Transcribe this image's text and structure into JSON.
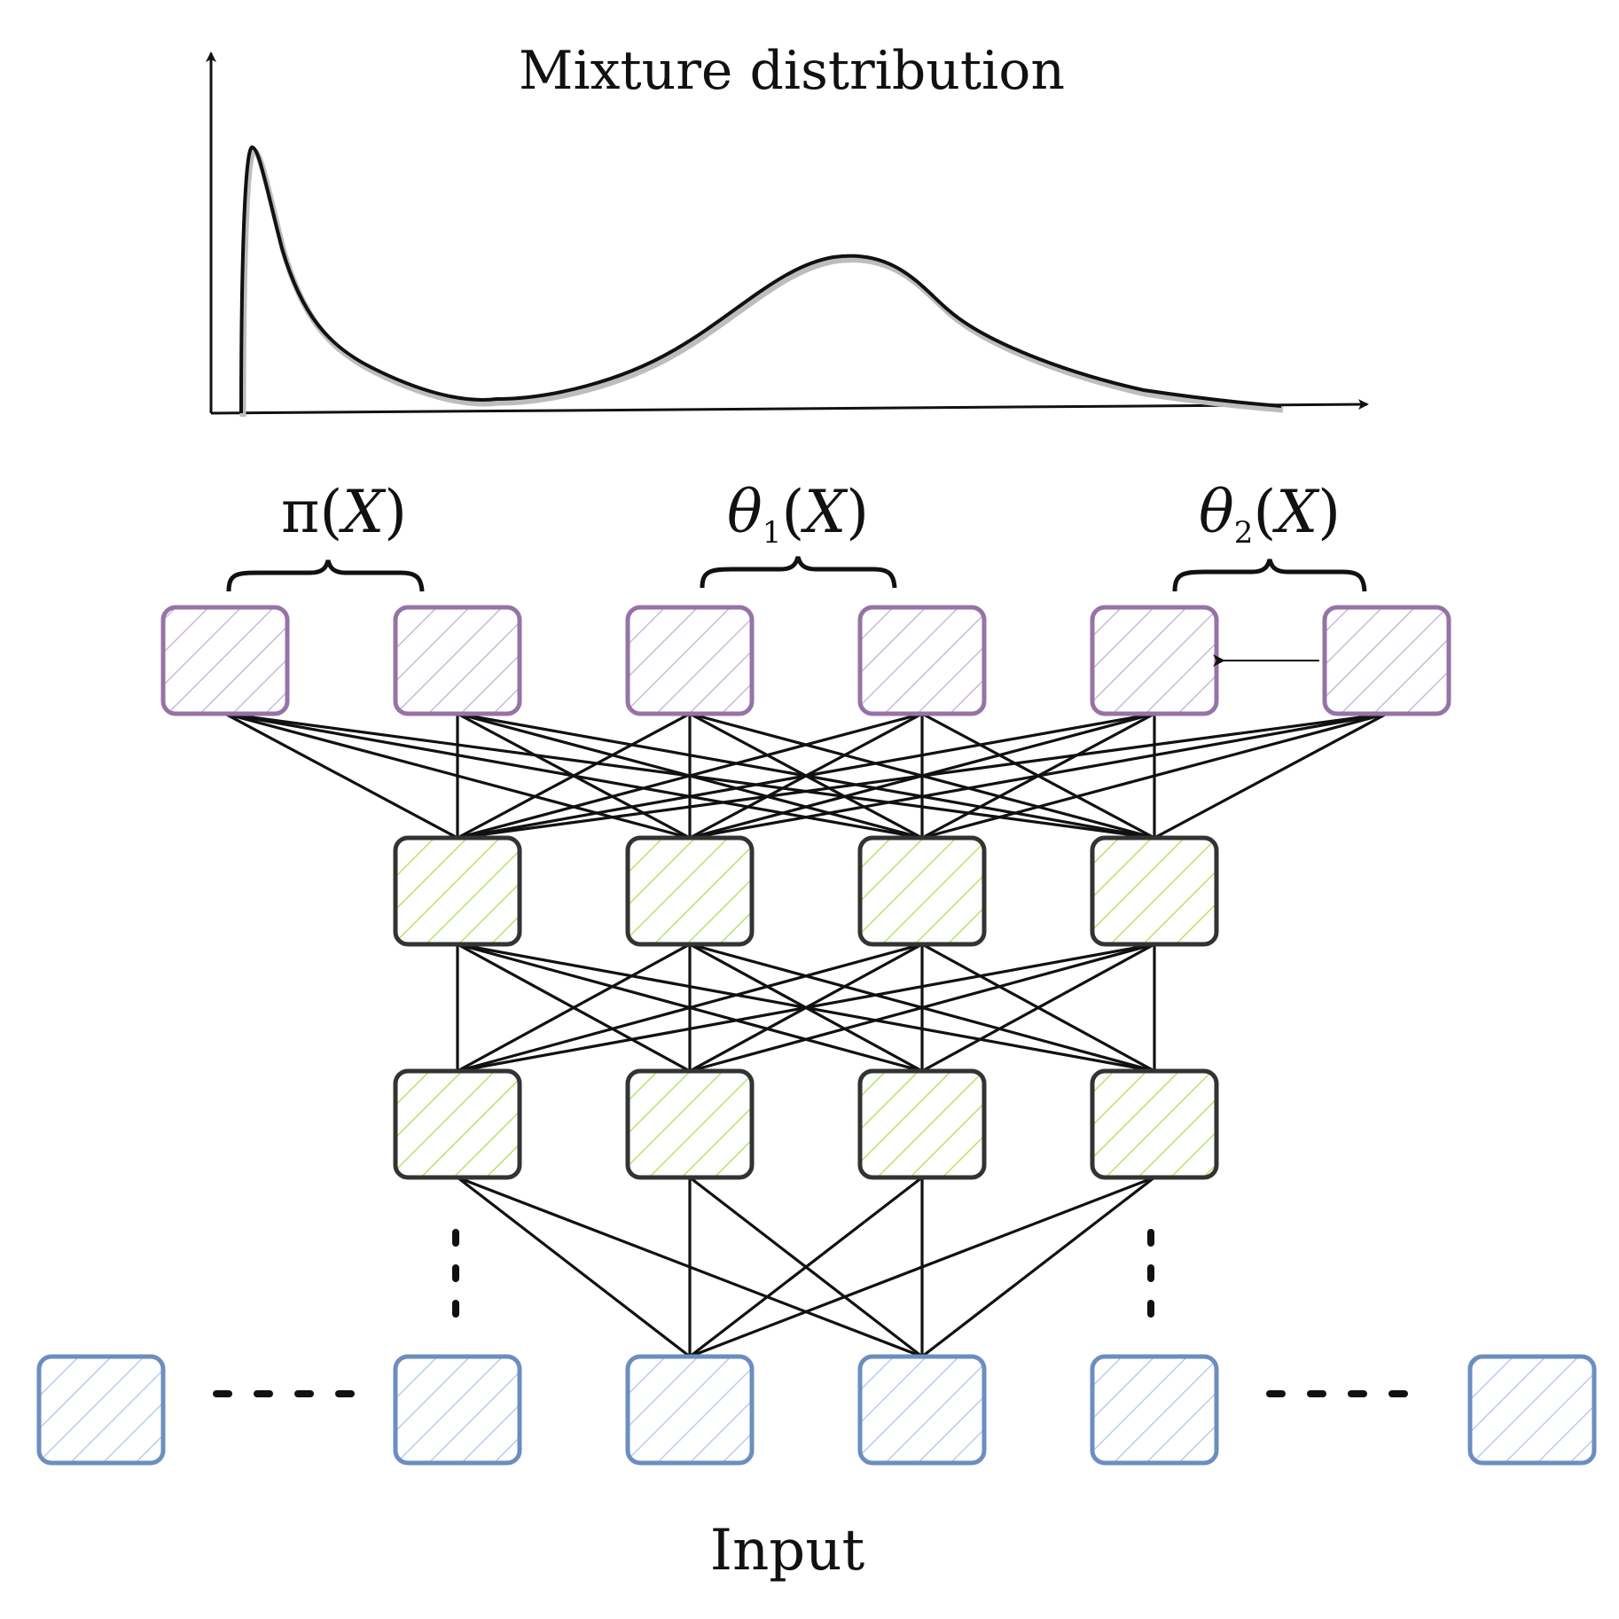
{
  "title": "Mixture distribution",
  "input_label": "Input",
  "outputs": [
    {
      "symbol": "π",
      "subscript": "",
      "arg": "X"
    },
    {
      "symbol": "θ",
      "subscript": "1",
      "arg": "X"
    },
    {
      "symbol": "θ",
      "subscript": "2",
      "arg": "X"
    }
  ],
  "colors": {
    "output_stroke": "#9673a6",
    "output_hatch": "#cbb8dc",
    "hidden_stroke": "#333333",
    "hidden_hatch": "#b9e26b",
    "input_stroke": "#6c8ebf",
    "input_hatch": "#b7cdef",
    "density_curve": "#111111",
    "density_shadow": "#bdbdbd"
  },
  "icons": [
    "vertical-ellipsis-icon",
    "horizontal-ellipsis-icon",
    "arrow-icon",
    "curly-brace-icon"
  ]
}
